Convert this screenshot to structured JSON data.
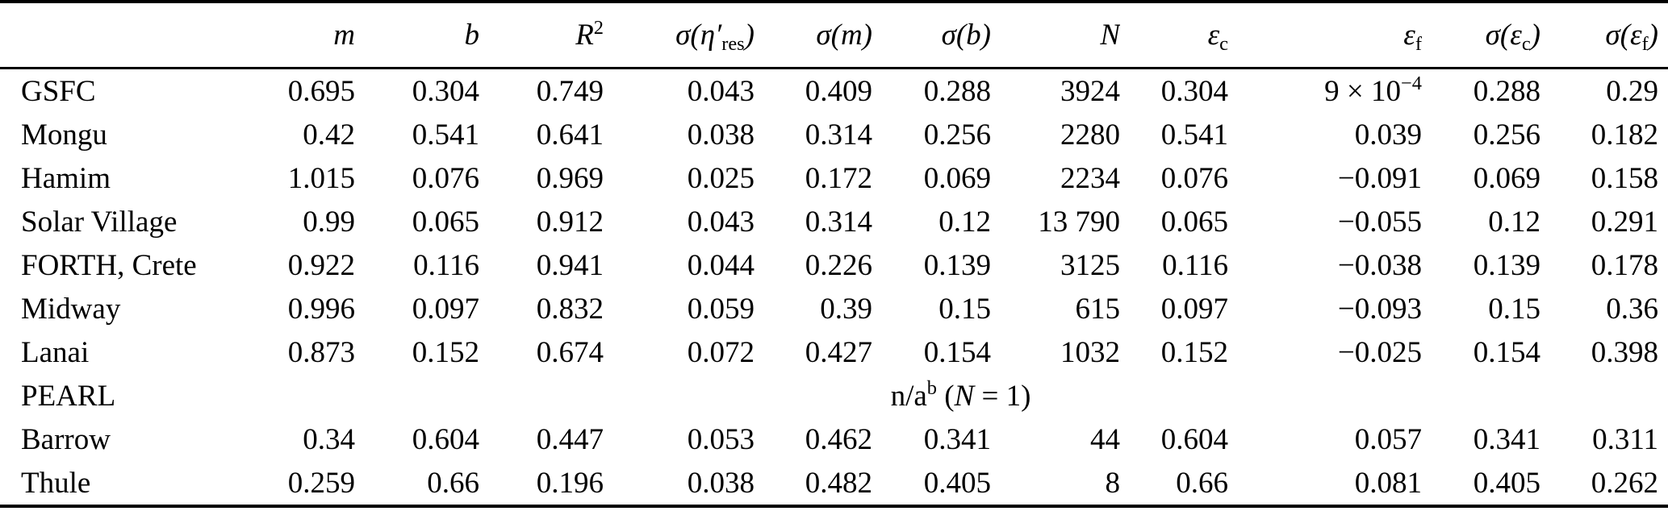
{
  "table": {
    "caption_hidden": "",
    "columns": [
      {
        "id": "site",
        "segments": []
      },
      {
        "id": "m",
        "segments": [
          {
            "t": "m",
            "s": "it"
          }
        ]
      },
      {
        "id": "b",
        "segments": [
          {
            "t": "b",
            "s": "it"
          }
        ]
      },
      {
        "id": "r-squared",
        "segments": [
          {
            "t": "R",
            "s": "it"
          },
          {
            "t": "2",
            "s": "sup"
          }
        ]
      },
      {
        "id": "sigma-eta-res",
        "segments": [
          {
            "t": "σ(η′",
            "s": "it"
          },
          {
            "t": "res",
            "s": "sub"
          },
          {
            "t": ")",
            "s": "it"
          }
        ]
      },
      {
        "id": "sigma-m",
        "segments": [
          {
            "t": "σ(m)",
            "s": "it"
          }
        ]
      },
      {
        "id": "sigma-b",
        "segments": [
          {
            "t": "σ(b)",
            "s": "it"
          }
        ]
      },
      {
        "id": "n",
        "segments": [
          {
            "t": "N",
            "s": "it"
          }
        ]
      },
      {
        "id": "eps-c",
        "segments": [
          {
            "t": "ε",
            "s": "it"
          },
          {
            "t": "c",
            "s": "sub"
          }
        ]
      },
      {
        "id": "eps-f",
        "segments": [
          {
            "t": "ε",
            "s": "it"
          },
          {
            "t": "f",
            "s": "sub"
          }
        ]
      },
      {
        "id": "sigma-eps-c",
        "segments": [
          {
            "t": "σ(ε",
            "s": "it"
          },
          {
            "t": "c",
            "s": "sub"
          },
          {
            "t": ")",
            "s": "it"
          }
        ]
      },
      {
        "id": "sigma-eps-f",
        "segments": [
          {
            "t": "σ(ε",
            "s": "it"
          },
          {
            "t": "f",
            "s": "sub"
          },
          {
            "t": ")",
            "s": "it"
          }
        ]
      }
    ],
    "rows": [
      {
        "site": "GSFC",
        "cells": [
          "0.695",
          "0.304",
          "0.749",
          "0.043",
          "0.409",
          "0.288",
          "3924",
          "0.304",
          [
            {
              "t": "9 × 10",
              "s": "rm"
            },
            {
              "t": "−4",
              "s": "sup"
            }
          ],
          "0.288",
          "0.29"
        ]
      },
      {
        "site": "Mongu",
        "cells": [
          "0.42",
          "0.541",
          "0.641",
          "0.038",
          "0.314",
          "0.256",
          "2280",
          "0.541",
          "0.039",
          "0.256",
          "0.182"
        ]
      },
      {
        "site": "Hamim",
        "cells": [
          "1.015",
          "0.076",
          "0.969",
          "0.025",
          "0.172",
          "0.069",
          "2234",
          "0.076",
          "−0.091",
          "0.069",
          "0.158"
        ]
      },
      {
        "site": "Solar Village",
        "cells": [
          "0.99",
          "0.065",
          "0.912",
          "0.043",
          "0.314",
          "0.12",
          "13 790",
          "0.065",
          "−0.055",
          "0.12",
          "0.291"
        ]
      },
      {
        "site": "FORTH, Crete",
        "cells": [
          "0.922",
          "0.116",
          "0.941",
          "0.044",
          "0.226",
          "0.139",
          "3125",
          "0.116",
          "−0.038",
          "0.139",
          "0.178"
        ]
      },
      {
        "site": "Midway",
        "cells": [
          "0.996",
          "0.097",
          "0.832",
          "0.059",
          "0.39",
          "0.15",
          "615",
          "0.097",
          "−0.093",
          "0.15",
          "0.36"
        ]
      },
      {
        "site": "Lanai",
        "cells": [
          "0.873",
          "0.152",
          "0.674",
          "0.072",
          "0.427",
          "0.154",
          "1032",
          "0.152",
          "−0.025",
          "0.154",
          "0.398"
        ]
      },
      {
        "site": "PEARL",
        "span_segments": [
          {
            "t": "n/a",
            "s": "rm"
          },
          {
            "t": "b",
            "s": "sup"
          },
          {
            "t": " (",
            "s": "rm"
          },
          {
            "t": "N",
            "s": "it"
          },
          {
            "t": " = 1)",
            "s": "rm"
          }
        ]
      },
      {
        "site": "Barrow",
        "cells": [
          "0.34",
          "0.604",
          "0.447",
          "0.053",
          "0.462",
          "0.341",
          "44",
          "0.604",
          "0.057",
          "0.341",
          "0.311"
        ]
      },
      {
        "site": "Thule",
        "cells": [
          "0.259",
          "0.66",
          "0.196",
          "0.038",
          "0.482",
          "0.405",
          "8",
          "0.66",
          "0.081",
          "0.405",
          "0.262"
        ]
      }
    ]
  }
}
